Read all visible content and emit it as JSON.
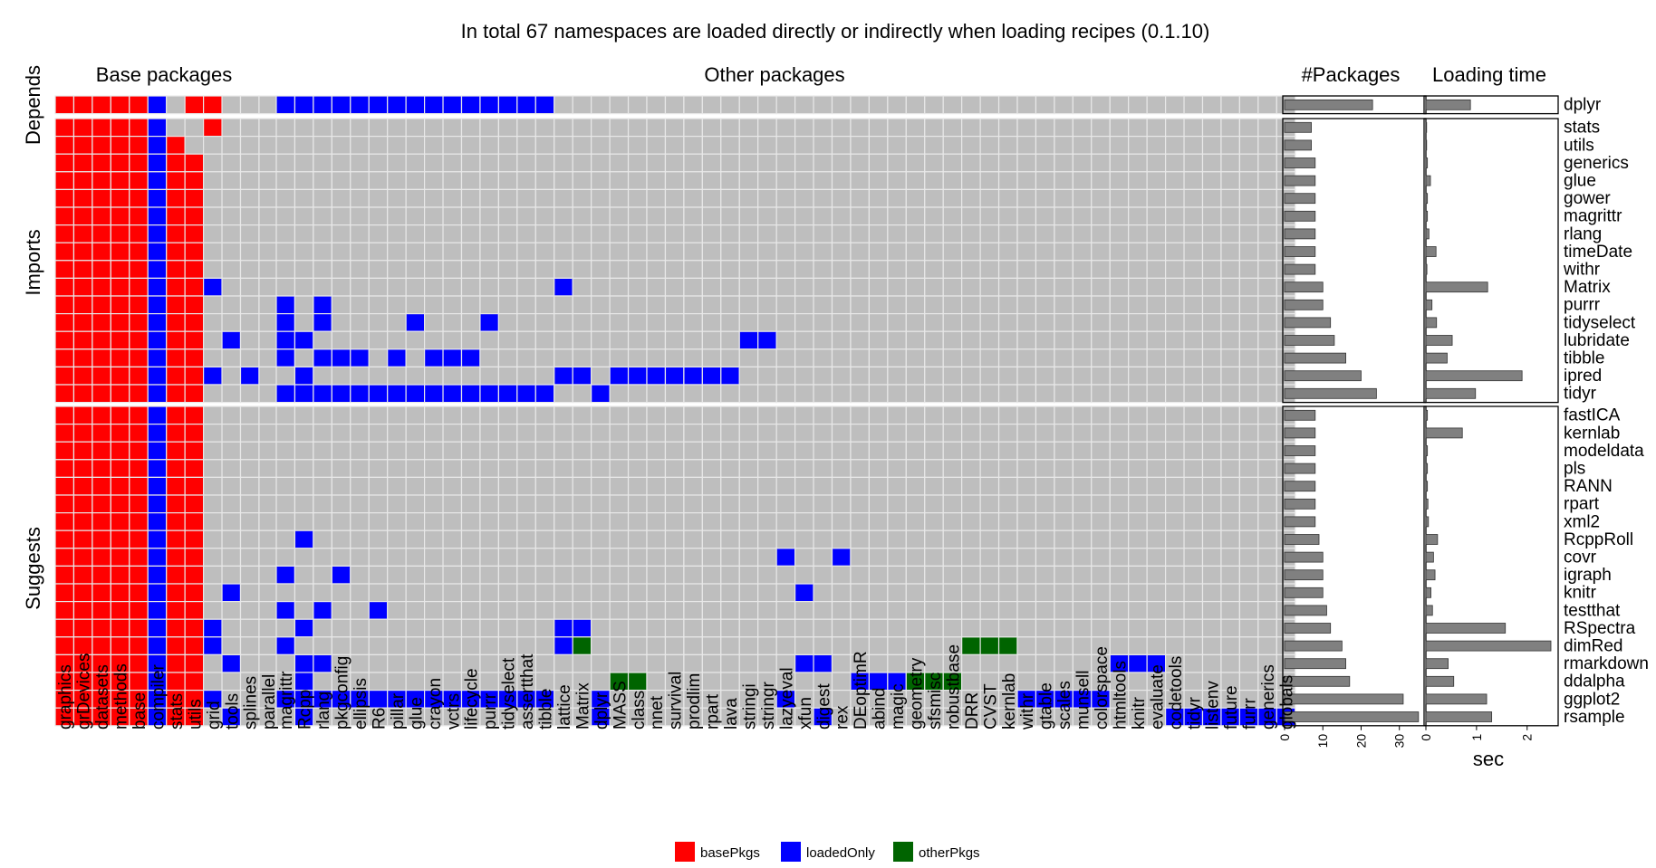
{
  "chart_data": {
    "type": "heatmap",
    "title": "In total 67 namespaces are loaded directly or indirectly when loading recipes (0.1.10)",
    "panel_titles": {
      "base": "Base packages",
      "other": "Other packages",
      "npkg": "#Packages",
      "time": "Loading time"
    },
    "group_labels": [
      "Depends",
      "Imports",
      "Suggests"
    ],
    "time_axis_label": "sec",
    "npkg_axis_ticks": [
      0,
      10,
      20,
      30
    ],
    "time_axis_ticks": [
      0,
      1,
      2
    ],
    "npkg_xlim": [
      0,
      35
    ],
    "time_xlim": [
      0,
      2.5
    ],
    "legend": [
      {
        "key": "basePkgs",
        "label": "basePkgs",
        "color": "#ff0000"
      },
      {
        "key": "loadedOnly",
        "label": "loadedOnly",
        "color": "#0000ff"
      },
      {
        "key": "otherPkgs",
        "label": "otherPkgs",
        "color": "#006400"
      }
    ],
    "empty_color": "#bebebe",
    "base_packages": [
      "graphics",
      "grDevices",
      "datasets",
      "methods",
      "base",
      "compiler",
      "stats",
      "utils",
      "grid",
      "tools",
      "splines",
      "parallel"
    ],
    "other_packages": [
      "magrittr",
      "Rcpp",
      "rlang",
      "pkgconfig",
      "ellipsis",
      "R6",
      "pillar",
      "glue",
      "crayon",
      "vctrs",
      "lifecycle",
      "purrr",
      "tidyselect",
      "assertthat",
      "tibble",
      "lattice",
      "Matrix",
      "dplyr",
      "MASS",
      "class",
      "nnet",
      "survival",
      "prodlim",
      "rpart",
      "lava",
      "stringi",
      "stringr",
      "lazyeval",
      "xfun",
      "digest",
      "rex",
      "DEoptimR",
      "abind",
      "magic",
      "geometry",
      "sfsmisc",
      "robustbase",
      "DRR",
      "CVST",
      "kernlab",
      "withr",
      "gtable",
      "scales",
      "munsell",
      "colorspace",
      "htmltools",
      "knitr",
      "evaluate",
      "codetools",
      "tidyr",
      "listenv",
      "future",
      "furrr",
      "generics",
      "globals"
    ],
    "rows": [
      {
        "group": "Depends",
        "name": "dplyr",
        "npkg": 23,
        "time": 0.88,
        "base": "bbbbbl bb",
        "other": [
          "0-14"
        ]
      },
      {
        "group": "Imports",
        "name": "stats",
        "npkg": 7,
        "time": 0.0,
        "base": "bbbbbl  b",
        "other": []
      },
      {
        "group": "Imports",
        "name": "utils",
        "npkg": 7,
        "time": 0.0,
        "base": "bbbbblb",
        "other": []
      },
      {
        "group": "Imports",
        "name": "generics",
        "npkg": 8,
        "time": 0.03,
        "base": "bbbbblbb",
        "other": []
      },
      {
        "group": "Imports",
        "name": "glue",
        "npkg": 8,
        "time": 0.09,
        "base": "bbbbblbb",
        "other": []
      },
      {
        "group": "Imports",
        "name": "gower",
        "npkg": 8,
        "time": 0.03,
        "base": "bbbbblbb",
        "other": []
      },
      {
        "group": "Imports",
        "name": "magrittr",
        "npkg": 8,
        "time": 0.03,
        "base": "bbbbblbb",
        "other": []
      },
      {
        "group": "Imports",
        "name": "rlang",
        "npkg": 8,
        "time": 0.06,
        "base": "bbbbblbb",
        "other": []
      },
      {
        "group": "Imports",
        "name": "timeDate",
        "npkg": 8,
        "time": 0.2,
        "base": "bbbbblbb",
        "other": []
      },
      {
        "group": "Imports",
        "name": "withr",
        "npkg": 8,
        "time": 0.02,
        "base": "bbbbblbb",
        "other": []
      },
      {
        "group": "Imports",
        "name": "Matrix",
        "npkg": 10,
        "time": 1.22,
        "base": "bbbbblbbl",
        "other": [
          "15"
        ]
      },
      {
        "group": "Imports",
        "name": "purrr",
        "npkg": 10,
        "time": 0.12,
        "base": "bbbbblbb",
        "other": [
          "0",
          "2"
        ]
      },
      {
        "group": "Imports",
        "name": "tidyselect",
        "npkg": 12,
        "time": 0.21,
        "base": "bbbbblbb",
        "other": [
          "0",
          "2",
          "7",
          "11"
        ]
      },
      {
        "group": "Imports",
        "name": "lubridate",
        "npkg": 13,
        "time": 0.52,
        "base": "bbbbblbb l",
        "other": [
          "0",
          "1",
          "25",
          "26"
        ]
      },
      {
        "group": "Imports",
        "name": "tibble",
        "npkg": 16,
        "time": 0.42,
        "base": "bbbbblbb",
        "other": [
          "0",
          "2-4",
          "6",
          "8-10"
        ]
      },
      {
        "group": "Imports",
        "name": "ipred",
        "npkg": 20,
        "time": 1.9,
        "base": "bbbbblbbl l",
        "other": [
          "1",
          "15",
          "16",
          "18-24"
        ]
      },
      {
        "group": "Imports",
        "name": "tidyr",
        "npkg": 24,
        "time": 0.98,
        "base": "bbbbblbb",
        "other": [
          "0-14",
          "17"
        ]
      },
      {
        "group": "Suggests",
        "name": "fastICA",
        "npkg": 8,
        "time": 0.03,
        "base": "bbbbblbb",
        "other": []
      },
      {
        "group": "Suggests",
        "name": "kernlab",
        "npkg": 8,
        "time": 0.72,
        "base": "bbbbblbb",
        "other": []
      },
      {
        "group": "Suggests",
        "name": "modeldata",
        "npkg": 8,
        "time": 0.03,
        "base": "bbbbblbb",
        "other": []
      },
      {
        "group": "Suggests",
        "name": "pls",
        "npkg": 8,
        "time": 0.03,
        "base": "bbbbblbb",
        "other": []
      },
      {
        "group": "Suggests",
        "name": "RANN",
        "npkg": 8,
        "time": 0.03,
        "base": "bbbbblbb",
        "other": []
      },
      {
        "group": "Suggests",
        "name": "rpart",
        "npkg": 8,
        "time": 0.04,
        "base": "bbbbblbb",
        "other": []
      },
      {
        "group": "Suggests",
        "name": "xml2",
        "npkg": 8,
        "time": 0.05,
        "base": "bbbbblbb",
        "other": []
      },
      {
        "group": "Suggests",
        "name": "RcppRoll",
        "npkg": 9,
        "time": 0.23,
        "base": "bbbbblbb",
        "other": [
          "1"
        ]
      },
      {
        "group": "Suggests",
        "name": "covr",
        "npkg": 10,
        "time": 0.15,
        "base": "bbbbblbb",
        "other": [
          "27",
          "30"
        ]
      },
      {
        "group": "Suggests",
        "name": "igraph",
        "npkg": 10,
        "time": 0.18,
        "base": "bbbbblbb",
        "other": [
          "0",
          "3"
        ]
      },
      {
        "group": "Suggests",
        "name": "knitr",
        "npkg": 10,
        "time": 0.1,
        "base": "bbbbblbb l",
        "other": [
          "28"
        ]
      },
      {
        "group": "Suggests",
        "name": "testthat",
        "npkg": 11,
        "time": 0.13,
        "base": "bbbbblbb",
        "other": [
          "0",
          "2",
          "5"
        ]
      },
      {
        "group": "Suggests",
        "name": "RSpectra",
        "npkg": 12,
        "time": 1.57,
        "base": "bbbbblbbl",
        "other": [
          "1",
          "15",
          "16"
        ]
      },
      {
        "group": "Suggests",
        "name": "dimRed",
        "npkg": 15,
        "time": 2.47,
        "base": "bbbbblbbl",
        "other": [
          "0",
          "15",
          "g16",
          "g37",
          "g38",
          "g39"
        ]
      },
      {
        "group": "Suggests",
        "name": "rmarkdown",
        "npkg": 16,
        "time": 0.44,
        "base": "bbbbblbb l",
        "other": [
          "1",
          "2",
          "28",
          "29",
          "45",
          "46",
          "47"
        ]
      },
      {
        "group": "Suggests",
        "name": "ddalpha",
        "npkg": 17,
        "time": 0.55,
        "base": "bbbbblbb",
        "other": [
          "1",
          "g18",
          "g19",
          "31",
          "32",
          "33",
          "g34",
          "g35",
          "g36"
        ]
      },
      {
        "group": "Suggests",
        "name": "ggplot2",
        "npkg": 31,
        "time": 1.2,
        "base": "bbbbblbbl",
        "other": [
          "0-14",
          "17",
          "27",
          "40-44"
        ]
      },
      {
        "group": "Suggests",
        "name": "rsample",
        "npkg": 35,
        "time": 1.3,
        "base": "bbbbblbb l  l",
        "other": [
          "1",
          "17",
          "29",
          "48-54"
        ]
      }
    ]
  }
}
